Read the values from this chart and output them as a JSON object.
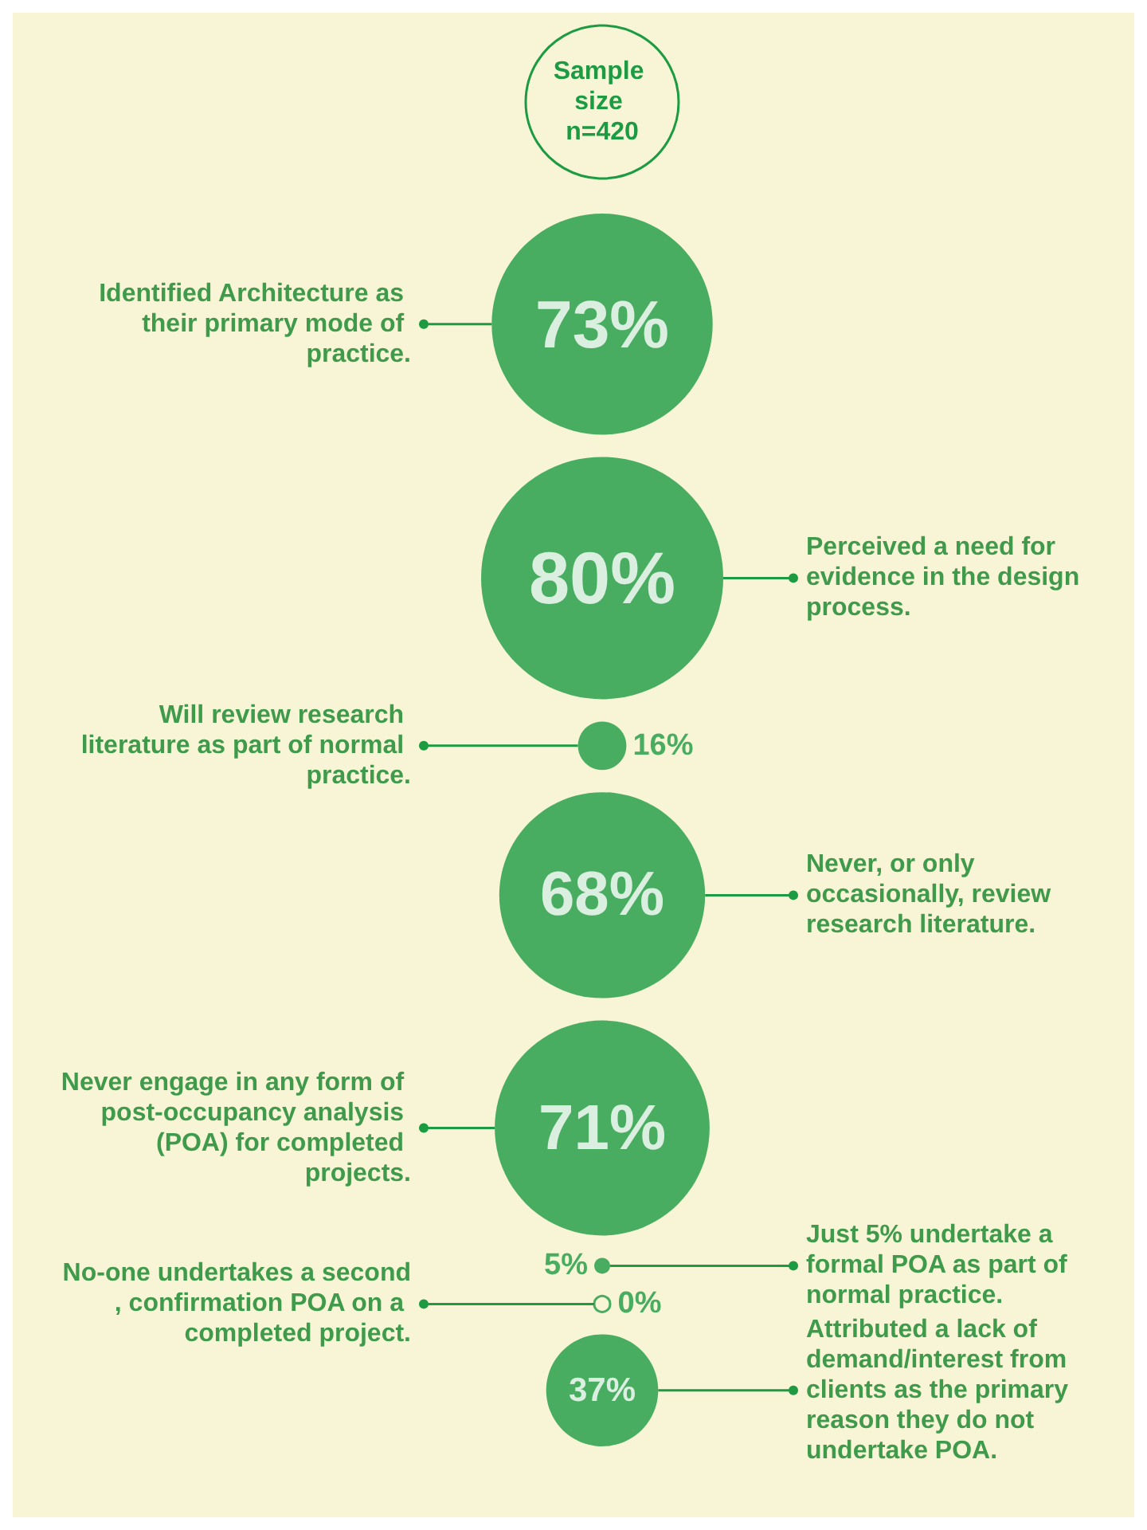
{
  "chart_data": {
    "type": "other",
    "title": "Sample size n=420",
    "categories": [
      "Identified Architecture as their primary mode of practice.",
      "Perceived a need for evidence in the design process.",
      "Will review research literature as part of normal practice.",
      "Never, or only occasionally, review research literature.",
      "Never engage in any form of post-occupancy analysis (POA) for completed projects.",
      "Just 5% undertake a formal POA as part of normal practice.",
      "No-one undertakes a second, confirmation POA on a completed project.",
      "Attributed a lack of demand/interest from clients as the primary reason they do not undertake POA."
    ],
    "values": [
      73,
      80,
      16,
      68,
      71,
      5,
      0,
      37
    ],
    "value_labels": [
      "73%",
      "80%",
      "16%",
      "68%",
      "71%",
      "5%",
      "0%",
      "37%"
    ],
    "color": "#1d9b43"
  }
}
